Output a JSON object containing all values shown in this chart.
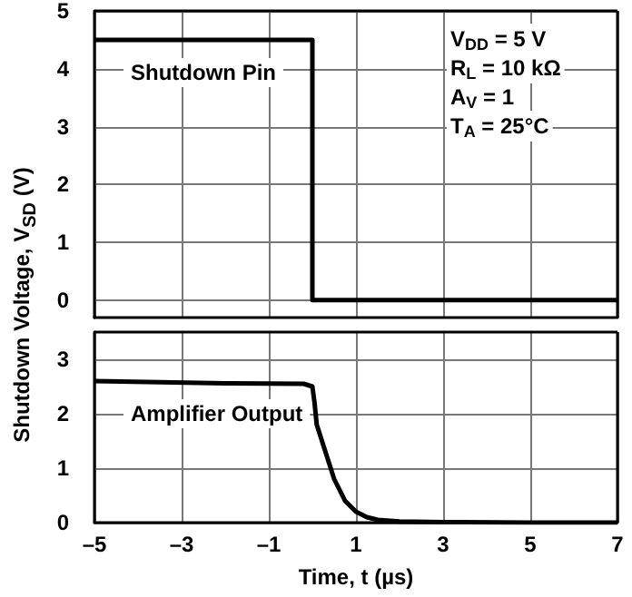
{
  "chart_data": [
    {
      "type": "line",
      "ylabel": "Shutdown Voltage, V$_{SD}$ (V)",
      "annotations": [
        "V$_{DD}$ = 5 V",
        "R$_{L}$ = 10 kΩ",
        "A$_{V}$ = 1",
        "T$_{A}$ = 25°C"
      ],
      "series": [
        {
          "name": "Shutdown Pin",
          "color": "#000000",
          "x": [
            -5,
            0,
            0,
            7
          ],
          "values": [
            4.5,
            4.5,
            0,
            0
          ]
        }
      ],
      "xlim": [
        -5,
        7
      ],
      "xticks": [
        -5,
        -3,
        -1,
        1,
        3,
        5,
        7
      ],
      "ylim": [
        -0.3,
        5
      ],
      "yticks": [
        0,
        1,
        2,
        3,
        4,
        5
      ],
      "grid": true,
      "tick_labels": "y",
      "marker": "none",
      "line_style": "solid"
    },
    {
      "type": "line",
      "xlabel": "Time, t (µs)",
      "series": [
        {
          "name": "Amplifier Output",
          "color": "#000000",
          "x": [
            -5,
            -2,
            -0.2,
            0,
            0.05,
            0.1,
            0.2,
            0.3,
            0.5,
            0.75,
            1,
            1.25,
            1.5,
            2,
            3,
            5,
            7
          ],
          "values": [
            2.6,
            2.56,
            2.55,
            2.5,
            2.2,
            1.8,
            1.55,
            1.3,
            0.8,
            0.4,
            0.2,
            0.1,
            0.05,
            0.02,
            0.01,
            0,
            0
          ]
        }
      ],
      "xlim": [
        -5,
        7
      ],
      "xticks": [
        {
          "value": -5,
          "label": "–5"
        },
        {
          "value": -3,
          "label": "–3"
        },
        {
          "value": -1,
          "label": "–1"
        },
        1,
        3,
        5,
        7
      ],
      "ylim": [
        0,
        3.5
      ],
      "yticks": [
        0,
        1,
        2,
        3
      ],
      "grid": true,
      "marker": "none",
      "line_style": "solid"
    }
  ]
}
